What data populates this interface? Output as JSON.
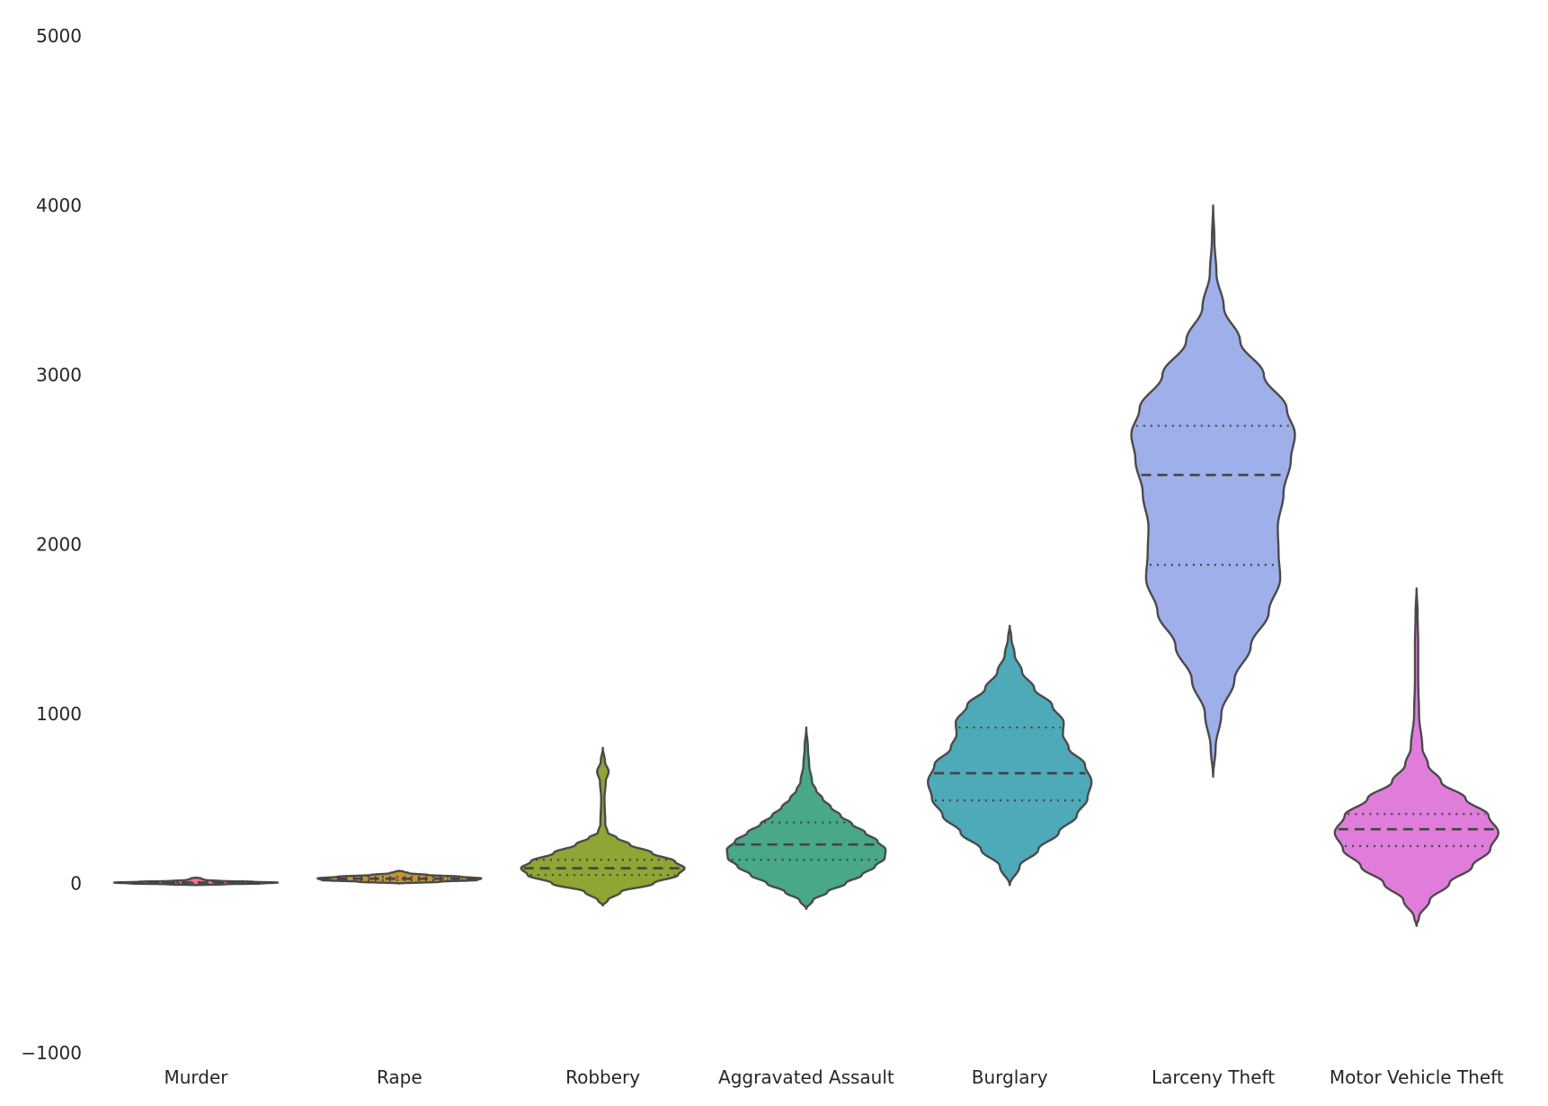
{
  "chart_data": {
    "type": "violin",
    "inner": "quartile",
    "ylim": [
      -1000,
      5000
    ],
    "yticks": [
      -1000,
      0,
      1000,
      2000,
      3000,
      4000,
      5000
    ],
    "ytick_labels": [
      "−1000",
      "0",
      "1000",
      "2000",
      "3000",
      "4000",
      "5000"
    ],
    "xlabel": "",
    "ylabel": "",
    "grid": false,
    "categories": [
      "Murder",
      "Rape",
      "Robbery",
      "Aggravated Assault",
      "Burglary",
      "Larceny Theft",
      "Motor Vehicle Theft"
    ],
    "series": [
      {
        "category": "Murder",
        "color": "#f77189",
        "range": [
          -10,
          35
        ],
        "q1": 2,
        "median": 5,
        "q3": 8,
        "density": [
          [
            -10,
            0
          ],
          [
            -5,
            0.35
          ],
          [
            0,
            0.8
          ],
          [
            5,
            1.0
          ],
          [
            10,
            0.7
          ],
          [
            15,
            0.3
          ],
          [
            20,
            0.12
          ],
          [
            25,
            0.08
          ],
          [
            30,
            0.06
          ],
          [
            35,
            0
          ]
        ]
      },
      {
        "category": "Rape",
        "color": "#c69432",
        "range": [
          0,
          75
        ],
        "q1": 20,
        "median": 28,
        "q3": 38,
        "density": [
          [
            0,
            0
          ],
          [
            10,
            0.5
          ],
          [
            20,
            0.95
          ],
          [
            30,
            1.0
          ],
          [
            40,
            0.75
          ],
          [
            50,
            0.35
          ],
          [
            60,
            0.12
          ],
          [
            70,
            0.05
          ],
          [
            75,
            0
          ]
        ]
      },
      {
        "category": "Robbery",
        "color": "#8ea634",
        "range": [
          -130,
          800
        ],
        "q1": 50,
        "median": 90,
        "q3": 140,
        "density": [
          [
            -130,
            0
          ],
          [
            -100,
            0.06
          ],
          [
            -50,
            0.22
          ],
          [
            0,
            0.62
          ],
          [
            50,
            0.92
          ],
          [
            90,
            1.0
          ],
          [
            130,
            0.88
          ],
          [
            180,
            0.6
          ],
          [
            230,
            0.33
          ],
          [
            270,
            0.17
          ],
          [
            300,
            0.06
          ],
          [
            350,
            0.03
          ],
          [
            500,
            0.02
          ],
          [
            600,
            0.035
          ],
          [
            660,
            0.07
          ],
          [
            720,
            0.025
          ],
          [
            800,
            0
          ]
        ]
      },
      {
        "category": "Aggravated Assault",
        "color": "#48a889",
        "range": [
          -150,
          920
        ],
        "q1": 140,
        "median": 230,
        "q3": 360,
        "density": [
          [
            -150,
            0
          ],
          [
            -100,
            0.08
          ],
          [
            -50,
            0.26
          ],
          [
            0,
            0.48
          ],
          [
            50,
            0.68
          ],
          [
            100,
            0.84
          ],
          [
            150,
            0.96
          ],
          [
            200,
            0.97
          ],
          [
            250,
            0.87
          ],
          [
            300,
            0.72
          ],
          [
            350,
            0.56
          ],
          [
            400,
            0.42
          ],
          [
            450,
            0.3
          ],
          [
            500,
            0.2
          ],
          [
            550,
            0.12
          ],
          [
            600,
            0.07
          ],
          [
            700,
            0.035
          ],
          [
            800,
            0.02
          ],
          [
            920,
            0
          ]
        ]
      },
      {
        "category": "Burglary",
        "color": "#4ea9b9",
        "range": [
          -10,
          1520
        ],
        "q1": 490,
        "median": 650,
        "q3": 920,
        "density": [
          [
            -10,
            0
          ],
          [
            100,
            0.12
          ],
          [
            200,
            0.35
          ],
          [
            300,
            0.6
          ],
          [
            400,
            0.82
          ],
          [
            500,
            0.95
          ],
          [
            600,
            1.0
          ],
          [
            700,
            0.92
          ],
          [
            800,
            0.72
          ],
          [
            880,
            0.65
          ],
          [
            950,
            0.66
          ],
          [
            1050,
            0.52
          ],
          [
            1150,
            0.3
          ],
          [
            1250,
            0.15
          ],
          [
            1350,
            0.06
          ],
          [
            1450,
            0.02
          ],
          [
            1520,
            0
          ]
        ]
      },
      {
        "category": "Larceny Theft",
        "color": "#9fafea",
        "range": [
          630,
          4000
        ],
        "q1": 1880,
        "median": 2410,
        "q3": 2700,
        "density": [
          [
            630,
            0
          ],
          [
            800,
            0.03
          ],
          [
            1000,
            0.1
          ],
          [
            1200,
            0.26
          ],
          [
            1400,
            0.46
          ],
          [
            1600,
            0.68
          ],
          [
            1800,
            0.82
          ],
          [
            1950,
            0.8
          ],
          [
            2100,
            0.79
          ],
          [
            2300,
            0.86
          ],
          [
            2500,
            0.95
          ],
          [
            2650,
            1.0
          ],
          [
            2800,
            0.9
          ],
          [
            3000,
            0.62
          ],
          [
            3200,
            0.33
          ],
          [
            3400,
            0.13
          ],
          [
            3600,
            0.04
          ],
          [
            3800,
            0.015
          ],
          [
            4000,
            0
          ]
        ]
      },
      {
        "category": "Motor Vehicle Theft",
        "color": "#e07ddb",
        "range": [
          -250,
          1740
        ],
        "q1": 220,
        "median": 320,
        "q3": 410,
        "density": [
          [
            -250,
            0
          ],
          [
            -200,
            0.03
          ],
          [
            -100,
            0.16
          ],
          [
            0,
            0.4
          ],
          [
            100,
            0.68
          ],
          [
            200,
            0.9
          ],
          [
            300,
            1.0
          ],
          [
            400,
            0.88
          ],
          [
            500,
            0.6
          ],
          [
            600,
            0.3
          ],
          [
            700,
            0.14
          ],
          [
            800,
            0.07
          ],
          [
            1000,
            0.03
          ],
          [
            1200,
            0.02
          ],
          [
            1400,
            0.02
          ],
          [
            1600,
            0.012
          ],
          [
            1740,
            0
          ]
        ]
      }
    ]
  }
}
